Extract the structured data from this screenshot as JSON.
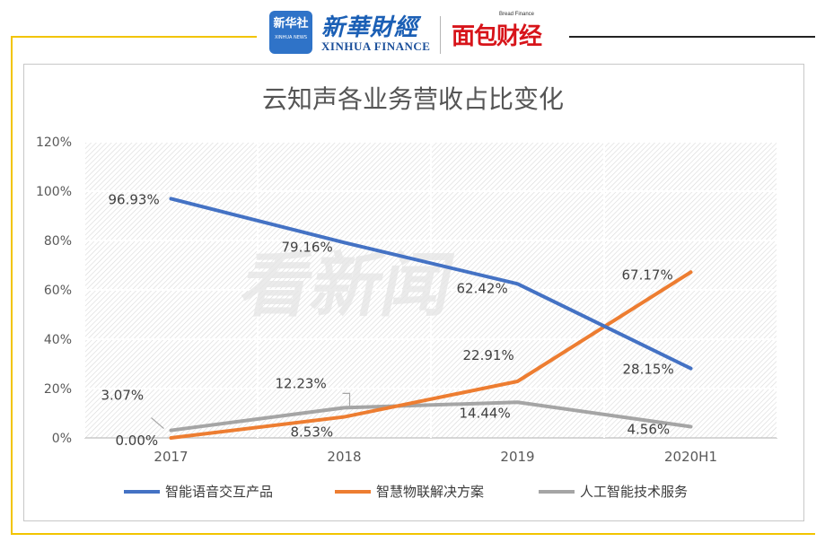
{
  "header": {
    "badge_cn": "新华社",
    "badge_en": "XINHUA NEWS",
    "xinhua_cn": "新華財經",
    "xinhua_en": "XINHUA FINANCE",
    "bread_en": "Bread Finance",
    "bread_cn": "面包财经"
  },
  "watermark": "看新闻",
  "colors": {
    "frame_yellow": "#f2c400",
    "series_blue": "#4472c4",
    "series_orange": "#ed7d31",
    "series_gray": "#a5a5a5"
  },
  "chart_data": {
    "type": "line",
    "title": "云知声各业务营收占比变化",
    "categories": [
      "2017",
      "2018",
      "2019",
      "2020H1"
    ],
    "ylim": [
      0,
      120
    ],
    "yticks": [
      "0%",
      "20%",
      "40%",
      "60%",
      "80%",
      "100%",
      "120%"
    ],
    "grid": true,
    "legend_position": "bottom",
    "series": [
      {
        "name": "智能语音交互产品",
        "values": [
          96.93,
          79.16,
          62.42,
          28.15
        ],
        "labels": [
          "96.93%",
          "79.16%",
          "62.42%",
          "28.15%"
        ]
      },
      {
        "name": "智慧物联解决方案",
        "values": [
          0.0,
          8.53,
          22.91,
          67.17
        ],
        "labels": [
          "0.00%",
          "8.53%",
          "22.91%",
          "67.17%"
        ]
      },
      {
        "name": "人工智能技术服务",
        "values": [
          3.07,
          12.23,
          14.44,
          4.56
        ],
        "labels": [
          "3.07%",
          "12.23%",
          "14.44%",
          "4.56%"
        ]
      }
    ]
  }
}
